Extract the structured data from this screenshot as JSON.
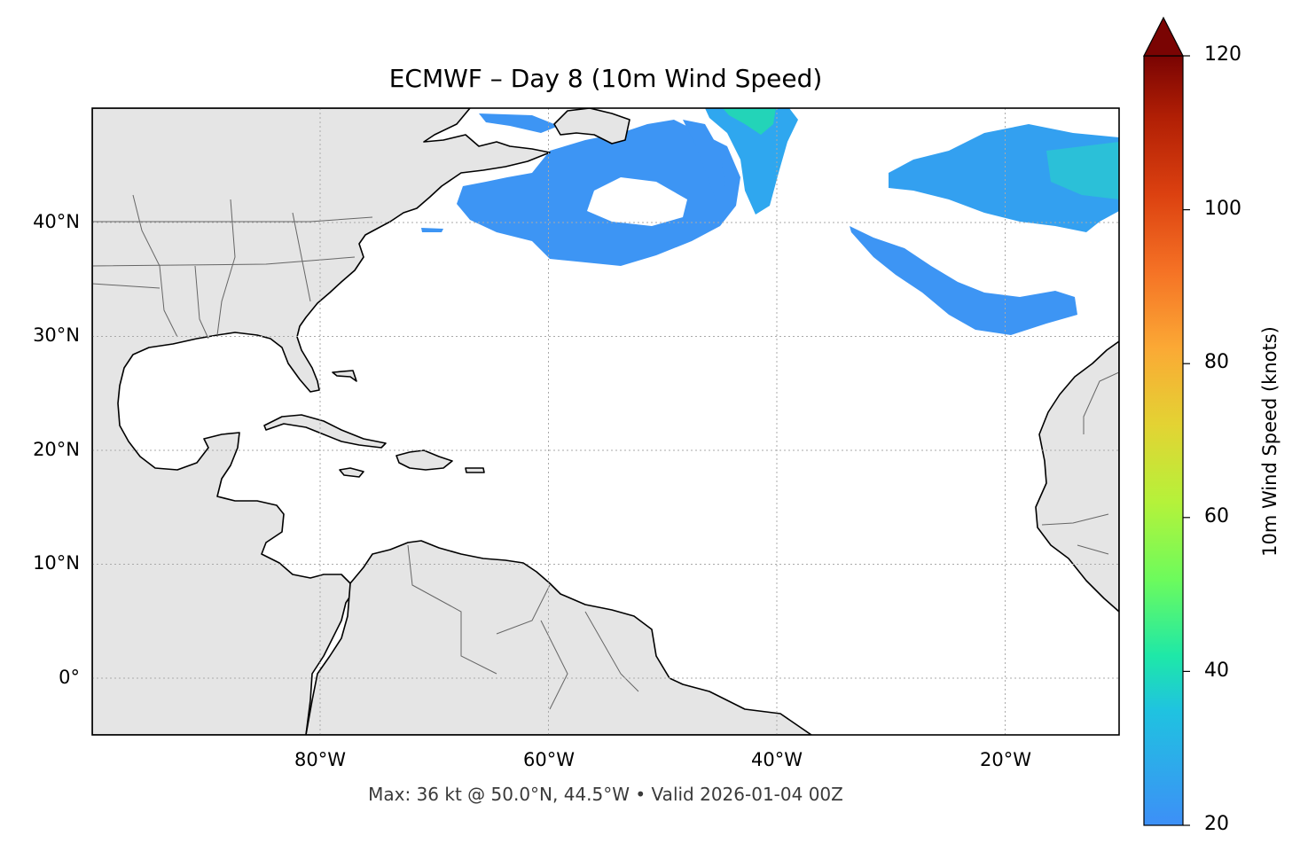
{
  "title": "ECMWF – Day 8 (10m Wind Speed)",
  "footer": "Max: 36 kt @ 50.0°N, 44.5°W • Valid 2026-01-04 00Z",
  "map": {
    "extent": {
      "lon_min": -100,
      "lon_max": -10,
      "lat_min": -5,
      "lat_max": 50
    },
    "lat_ticks": [
      {
        "value": 40,
        "label": "40°N"
      },
      {
        "value": 30,
        "label": "30°N"
      },
      {
        "value": 20,
        "label": "20°N"
      },
      {
        "value": 10,
        "label": "10°N"
      },
      {
        "value": 0,
        "label": "0°"
      }
    ],
    "lon_ticks": [
      {
        "value": -80,
        "label": "80°W"
      },
      {
        "value": -60,
        "label": "60°W"
      },
      {
        "value": -40,
        "label": "40°W"
      },
      {
        "value": -20,
        "label": "20°W"
      }
    ],
    "gridlines": true,
    "land_color": "#e5e5e5",
    "ocean_color": "#ffffff"
  },
  "colorbar": {
    "label": "10m Wind Speed (knots)",
    "min": 20,
    "max": 120,
    "ticks": [
      "20",
      "40",
      "60",
      "80",
      "100",
      "120"
    ],
    "extend": "max",
    "colormap": "turbo"
  },
  "max_point": {
    "speed_kt": 36,
    "lat": 50.0,
    "lon": -44.5
  }
}
